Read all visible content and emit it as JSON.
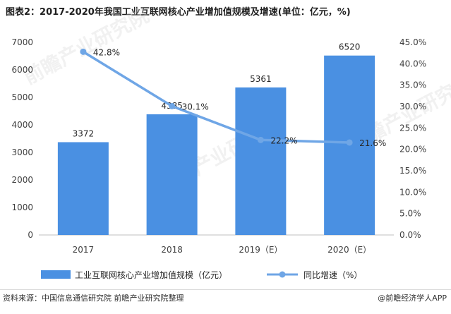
{
  "title": "图表2：2017-2020年我国工业互联网核心产业增加值规模及增速(单位：亿元，%)",
  "colors": {
    "bar": "#4a90e2",
    "line": "#6fa6e6",
    "axis": "#bfbfbf"
  },
  "chart_data": {
    "type": "bar+line",
    "categories": [
      "2017",
      "2018",
      "2019（E）",
      "2020（E）"
    ],
    "series": [
      {
        "name": "工业互联网核心产业增加值规模（亿元）",
        "type": "bar",
        "axis": "left",
        "values": [
          3372,
          4385,
          5361,
          6520
        ],
        "labels": [
          "3372",
          "4385",
          "5361",
          "6520"
        ]
      },
      {
        "name": "同比增速（%）",
        "type": "line",
        "axis": "right",
        "values": [
          42.8,
          30.1,
          22.2,
          21.6
        ],
        "labels": [
          "42.8%",
          "30.1%",
          "22.2%",
          "21.6%"
        ]
      }
    ],
    "y_left": {
      "min": 0,
      "max": 7000,
      "step": 1000,
      "ticks": [
        "0",
        "1000",
        "2000",
        "3000",
        "4000",
        "5000",
        "6000",
        "7000"
      ]
    },
    "y_right": {
      "min": 0,
      "max": 45,
      "step": 5,
      "ticks": [
        "0.0%",
        "5.0%",
        "10.0%",
        "15.0%",
        "20.0%",
        "25.0%",
        "30.0%",
        "35.0%",
        "40.0%",
        "45.0%"
      ]
    },
    "legend": [
      "工业互联网核心产业增加值规模（亿元）",
      "同比增速（%）"
    ],
    "legend_position": "bottom"
  },
  "footer": {
    "source": "资料来源：中国信息通信研究院 前瞻产业研究院整理",
    "brand": "@前瞻经济学人APP"
  }
}
